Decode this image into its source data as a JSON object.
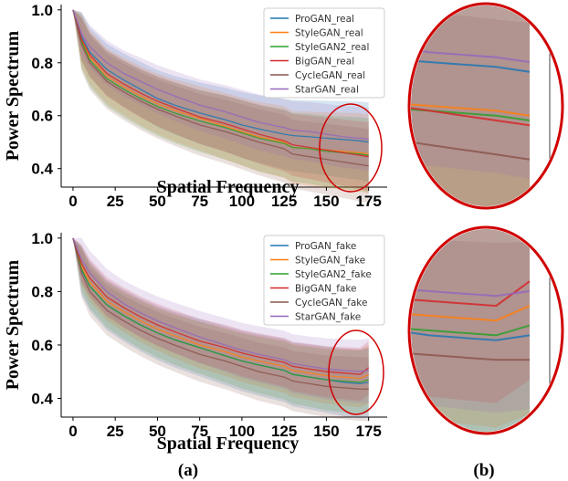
{
  "colors": {
    "ProGAN": "#1f77b4",
    "StyleGAN": "#ff7f0e",
    "StyleGAN2": "#2ca02c",
    "BigGAN": "#d62728",
    "CycleGAN": "#8c564b",
    "StarGAN": "#9467bd",
    "highlight": "#d00000"
  },
  "panel_labels": {
    "a": "(a)",
    "b": "(b)"
  },
  "chart_data": [
    {
      "type": "line",
      "xlabel": "Spatial Frequency",
      "ylabel": "Power Spectrum",
      "xticks": [
        0,
        25,
        50,
        75,
        100,
        125,
        150,
        175
      ],
      "yticks": [
        0.4,
        0.6,
        0.8,
        1.0
      ],
      "xlim": [
        -7,
        186
      ],
      "ylim": [
        0.33,
        1.02
      ],
      "legend": "top-right",
      "x": [
        0,
        5,
        10,
        20,
        30,
        40,
        50,
        60,
        75,
        90,
        100,
        110,
        125,
        130,
        140,
        150,
        160,
        170,
        175
      ],
      "series": [
        {
          "name": "ProGAN_real",
          "values": [
            1.0,
            0.9,
            0.84,
            0.775,
            0.735,
            0.7,
            0.665,
            0.64,
            0.61,
            0.585,
            0.565,
            0.55,
            0.53,
            0.525,
            0.52,
            0.515,
            0.51,
            0.505,
            0.5
          ],
          "band": [
            0.09,
            0.15
          ]
        },
        {
          "name": "StyleGAN_real",
          "values": [
            1.0,
            0.885,
            0.82,
            0.75,
            0.71,
            0.675,
            0.645,
            0.62,
            0.59,
            0.56,
            0.54,
            0.52,
            0.5,
            0.48,
            0.475,
            0.47,
            0.465,
            0.46,
            0.455
          ],
          "band": [
            0.1,
            0.15
          ]
        },
        {
          "name": "StyleGAN2_real",
          "values": [
            1.0,
            0.88,
            0.81,
            0.74,
            0.7,
            0.665,
            0.635,
            0.61,
            0.58,
            0.555,
            0.535,
            0.515,
            0.495,
            0.48,
            0.475,
            0.465,
            0.46,
            0.455,
            0.45
          ],
          "band": [
            0.1,
            0.14
          ]
        },
        {
          "name": "BigGAN_real",
          "values": [
            1.0,
            0.89,
            0.83,
            0.76,
            0.72,
            0.685,
            0.655,
            0.63,
            0.595,
            0.57,
            0.55,
            0.53,
            0.505,
            0.49,
            0.48,
            0.47,
            0.46,
            0.45,
            0.445
          ],
          "band": [
            0.08,
            0.13
          ]
        },
        {
          "name": "CycleGAN_real",
          "values": [
            1.0,
            0.87,
            0.8,
            0.73,
            0.69,
            0.655,
            0.625,
            0.6,
            0.565,
            0.54,
            0.52,
            0.5,
            0.475,
            0.455,
            0.445,
            0.435,
            0.425,
            0.415,
            0.41
          ],
          "band": [
            0.1,
            0.14
          ]
        },
        {
          "name": "StarGAN_real",
          "values": [
            1.0,
            0.91,
            0.86,
            0.8,
            0.76,
            0.73,
            0.7,
            0.675,
            0.64,
            0.615,
            0.595,
            0.575,
            0.555,
            0.545,
            0.54,
            0.53,
            0.52,
            0.515,
            0.51
          ],
          "band": [
            0.08,
            0.12
          ]
        }
      ]
    },
    {
      "type": "line",
      "xlabel": "Spatial Frequency",
      "ylabel": "Power Spectrum",
      "xticks": [
        0,
        25,
        50,
        75,
        100,
        125,
        150,
        175
      ],
      "yticks": [
        0.4,
        0.6,
        0.8,
        1.0
      ],
      "xlim": [
        -7,
        186
      ],
      "ylim": [
        0.33,
        1.02
      ],
      "legend": "top-right",
      "x": [
        0,
        5,
        10,
        20,
        30,
        40,
        50,
        60,
        75,
        90,
        100,
        110,
        125,
        130,
        140,
        150,
        160,
        170,
        175
      ],
      "series": [
        {
          "name": "ProGAN_fake",
          "values": [
            1.0,
            0.88,
            0.82,
            0.75,
            0.71,
            0.675,
            0.645,
            0.62,
            0.59,
            0.56,
            0.54,
            0.525,
            0.505,
            0.49,
            0.48,
            0.47,
            0.46,
            0.455,
            0.46
          ],
          "band": [
            0.09,
            0.13
          ]
        },
        {
          "name": "StyleGAN_fake",
          "values": [
            1.0,
            0.895,
            0.835,
            0.765,
            0.725,
            0.69,
            0.66,
            0.635,
            0.6,
            0.575,
            0.555,
            0.54,
            0.52,
            0.505,
            0.495,
            0.485,
            0.48,
            0.475,
            0.49
          ],
          "band": [
            0.07,
            0.11
          ]
        },
        {
          "name": "StyleGAN2_fake",
          "values": [
            1.0,
            0.885,
            0.82,
            0.75,
            0.71,
            0.675,
            0.645,
            0.62,
            0.59,
            0.56,
            0.54,
            0.525,
            0.505,
            0.49,
            0.48,
            0.47,
            0.465,
            0.46,
            0.47
          ],
          "band": [
            0.08,
            0.12
          ]
        },
        {
          "name": "BigGAN_fake",
          "values": [
            1.0,
            0.905,
            0.85,
            0.78,
            0.74,
            0.705,
            0.675,
            0.65,
            0.615,
            0.59,
            0.57,
            0.555,
            0.535,
            0.52,
            0.51,
            0.5,
            0.495,
            0.49,
            0.515
          ],
          "band": [
            0.07,
            0.1
          ]
        },
        {
          "name": "CycleGAN_fake",
          "values": [
            1.0,
            0.87,
            0.8,
            0.73,
            0.69,
            0.655,
            0.625,
            0.6,
            0.565,
            0.54,
            0.52,
            0.5,
            0.48,
            0.465,
            0.455,
            0.445,
            0.44,
            0.435,
            0.435
          ],
          "band": [
            0.09,
            0.12
          ]
        },
        {
          "name": "StarGAN_fake",
          "values": [
            1.0,
            0.92,
            0.87,
            0.8,
            0.755,
            0.72,
            0.69,
            0.665,
            0.63,
            0.6,
            0.58,
            0.565,
            0.545,
            0.53,
            0.52,
            0.51,
            0.505,
            0.5,
            0.505
          ],
          "band": [
            0.08,
            0.12
          ]
        }
      ]
    }
  ]
}
